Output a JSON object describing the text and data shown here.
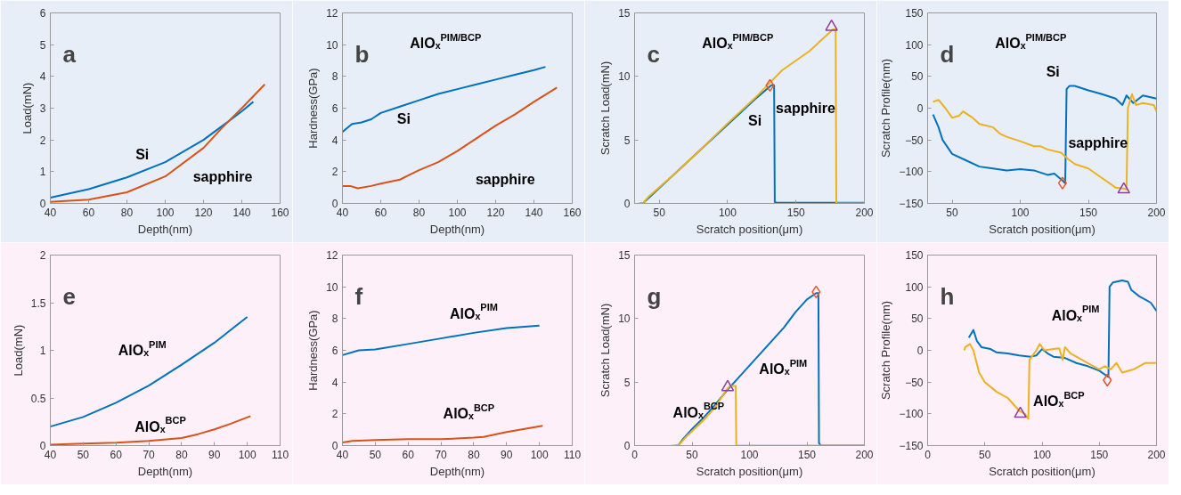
{
  "chart_data": [
    {
      "type": "line",
      "title": "a",
      "xlabel": "Depth(nm)",
      "ylabel": "Load(mN)",
      "xlim": [
        40,
        160
      ],
      "xticks": [
        40,
        60,
        80,
        100,
        120,
        140,
        160
      ],
      "ylim": [
        0,
        6
      ],
      "yticks": [
        0,
        1,
        2,
        3,
        4,
        5,
        6
      ],
      "series": [
        {
          "name": "Si",
          "color": "#0072bd",
          "x": [
            40,
            60,
            80,
            100,
            120,
            130,
            140,
            146
          ],
          "values": [
            0.18,
            0.45,
            0.82,
            1.3,
            2.0,
            2.45,
            2.9,
            3.2
          ]
        },
        {
          "name": "sapphire",
          "color": "#d95319",
          "x": [
            40,
            60,
            80,
            100,
            120,
            130,
            140,
            152
          ],
          "values": [
            0.05,
            0.12,
            0.35,
            0.85,
            1.75,
            2.4,
            3.0,
            3.75
          ]
        }
      ]
    },
    {
      "type": "line",
      "title": "b",
      "xlabel": "Depth(nm)",
      "ylabel": "Hardness(GPa)",
      "xlim": [
        40,
        160
      ],
      "xticks": [
        40,
        60,
        80,
        100,
        120,
        140,
        160
      ],
      "ylim": [
        0,
        12
      ],
      "yticks": [
        0,
        2,
        4,
        6,
        8,
        10,
        12
      ],
      "series": [
        {
          "name": "Si",
          "color": "#0072bd",
          "x": [
            40,
            45,
            50,
            55,
            60,
            70,
            80,
            90,
            100,
            110,
            120,
            130,
            140,
            146
          ],
          "values": [
            4.5,
            5.0,
            5.1,
            5.3,
            5.7,
            6.1,
            6.5,
            6.9,
            7.2,
            7.5,
            7.8,
            8.1,
            8.4,
            8.6
          ]
        },
        {
          "name": "sapphire",
          "color": "#d95319",
          "x": [
            40,
            44,
            48,
            55,
            60,
            70,
            75,
            80,
            90,
            100,
            110,
            120,
            130,
            140,
            152
          ],
          "values": [
            1.1,
            1.1,
            0.95,
            1.1,
            1.25,
            1.5,
            1.8,
            2.1,
            2.6,
            3.3,
            4.1,
            4.9,
            5.6,
            6.4,
            7.3
          ]
        }
      ],
      "annotations": [
        "AlOₓ$^{PIM/BCP}$"
      ]
    },
    {
      "type": "line",
      "title": "c",
      "xlabel": "Scratch position(μm)",
      "ylabel": "Scratch Load(mN)",
      "xlim": [
        32,
        200
      ],
      "xticks": [
        50,
        100,
        150,
        200
      ],
      "ylim": [
        0,
        15
      ],
      "yticks": [
        0,
        5,
        10,
        15
      ],
      "series": [
        {
          "name": "Si",
          "color": "#0072bd",
          "x": [
            36,
            38,
            42,
            60,
            80,
            100,
            120,
            132,
            134,
            134.5,
            136,
            200
          ],
          "values": [
            0,
            0,
            0.4,
            2.2,
            4.2,
            6.2,
            8.2,
            9.3,
            9.3,
            0.1,
            0.05,
            0.05
          ]
        },
        {
          "name": "sapphire",
          "color": "#edb120",
          "x": [
            35,
            38,
            42,
            60,
            80,
            100,
            120,
            140,
            160,
            177,
            179,
            179.5,
            200
          ],
          "values": [
            0,
            0,
            0.5,
            2.2,
            4.2,
            6.3,
            8.3,
            10.5,
            12.0,
            13.7,
            13.7,
            0,
            0
          ]
        },
        {
          "type": "scatter",
          "marker": "diamond",
          "color": "#e8552a",
          "x": [
            131
          ],
          "values": [
            9.3
          ]
        },
        {
          "type": "scatter",
          "marker": "triangle",
          "color": "#8e3c9e",
          "x": [
            176
          ],
          "values": [
            13.9
          ]
        }
      ],
      "annotations": [
        "AlOₓ$^{PIM/BCP}$"
      ]
    },
    {
      "type": "line",
      "title": "d",
      "xlabel": "Scratch position(μm)",
      "ylabel": "Scratch Profile(nm)",
      "xlim": [
        32,
        200
      ],
      "xticks": [
        50,
        100,
        150,
        200
      ],
      "ylim": [
        -150,
        150
      ],
      "yticks": [
        -150,
        -100,
        -50,
        0,
        50,
        100,
        150
      ],
      "series": [
        {
          "name": "Si",
          "color": "#0072bd",
          "x": [
            36,
            40,
            43,
            50,
            60,
            70,
            80,
            90,
            100,
            110,
            120,
            125,
            130,
            133,
            134,
            136,
            140,
            150,
            160,
            170,
            175,
            178,
            183,
            190,
            200
          ],
          "values": [
            -10,
            -30,
            -50,
            -72,
            -82,
            -92,
            -95,
            -98,
            -96,
            -98,
            -105,
            -103,
            -112,
            -118,
            30,
            35,
            35,
            28,
            22,
            15,
            5,
            20,
            8,
            20,
            15
          ]
        },
        {
          "name": "sapphire",
          "color": "#edb120",
          "x": [
            36,
            40,
            45,
            50,
            55,
            58,
            65,
            70,
            80,
            85,
            90,
            100,
            110,
            115,
            120,
            130,
            135,
            140,
            150,
            160,
            170,
            177,
            178,
            179,
            182,
            185,
            190,
            198,
            200
          ],
          "values": [
            10,
            13,
            0,
            -15,
            -12,
            -5,
            -15,
            -25,
            -30,
            -40,
            -45,
            -52,
            -60,
            -60,
            -65,
            -70,
            -80,
            -88,
            -95,
            -110,
            -125,
            -127,
            -128,
            0,
            22,
            5,
            8,
            5,
            -5
          ]
        },
        {
          "type": "scatter",
          "marker": "diamond",
          "color": "#e8552a",
          "x": [
            131
          ],
          "values": [
            -118
          ]
        },
        {
          "type": "scatter",
          "marker": "triangle",
          "color": "#8e3c9e",
          "x": [
            176
          ],
          "values": [
            -128
          ]
        }
      ],
      "annotations": [
        "AlOₓ$^{PIM/BCP}$"
      ]
    },
    {
      "type": "line",
      "title": "e",
      "xlabel": "Depth(nm)",
      "ylabel": "Load(mN)",
      "xlim": [
        40,
        110
      ],
      "xticks": [
        40,
        50,
        60,
        70,
        80,
        90,
        100,
        110
      ],
      "ylim": [
        0,
        2
      ],
      "yticks": [
        0,
        0.5,
        1,
        1.5,
        2
      ],
      "series": [
        {
          "name": "AlOₓ$^{PIM}$",
          "color": "#0072bd",
          "x": [
            40,
            50,
            60,
            70,
            80,
            90,
            100
          ],
          "values": [
            0.2,
            0.3,
            0.45,
            0.63,
            0.85,
            1.08,
            1.35
          ]
        },
        {
          "name": "AlOₓ$^{BCP}$",
          "color": "#d95319",
          "x": [
            40,
            50,
            60,
            70,
            80,
            85,
            90,
            95,
            101
          ],
          "values": [
            0.01,
            0.02,
            0.03,
            0.05,
            0.08,
            0.12,
            0.17,
            0.23,
            0.31
          ]
        }
      ]
    },
    {
      "type": "line",
      "title": "f",
      "xlabel": "Depth(nm)",
      "ylabel": "Hardness(GPa)",
      "xlim": [
        40,
        110
      ],
      "xticks": [
        40,
        50,
        60,
        70,
        80,
        90,
        100,
        110
      ],
      "ylim": [
        0,
        12
      ],
      "yticks": [
        0,
        2,
        4,
        6,
        8,
        10,
        12
      ],
      "series": [
        {
          "name": "AlOₓ$^{PIM}$",
          "color": "#0072bd",
          "x": [
            40,
            45,
            50,
            60,
            70,
            80,
            90,
            100
          ],
          "values": [
            5.7,
            6.0,
            6.05,
            6.4,
            6.75,
            7.1,
            7.4,
            7.55
          ]
        },
        {
          "name": "AlOₓ$^{BCP}$",
          "color": "#d95319",
          "x": [
            40,
            43,
            50,
            60,
            70,
            80,
            83,
            90,
            101
          ],
          "values": [
            0.2,
            0.3,
            0.35,
            0.4,
            0.4,
            0.5,
            0.55,
            0.85,
            1.25
          ]
        }
      ]
    },
    {
      "type": "line",
      "title": "g",
      "xlabel": "Scratch position(μm)",
      "ylabel": "Scratch Load(mN)",
      "xlim": [
        0,
        200
      ],
      "xticks": [
        0,
        50,
        100,
        150,
        200
      ],
      "ylim": [
        0,
        15
      ],
      "yticks": [
        0,
        5,
        10,
        15
      ],
      "series": [
        {
          "name": "AlOₓ$^{PIM}$",
          "color": "#0072bd",
          "x": [
            35,
            38,
            42,
            50,
            60,
            70,
            80,
            90,
            100,
            110,
            120,
            130,
            140,
            150,
            158,
            160,
            160.5,
            162,
            200
          ],
          "values": [
            0,
            0,
            0.5,
            1.3,
            2.2,
            3.2,
            4.3,
            5.3,
            6.3,
            7.3,
            8.3,
            9.3,
            10.5,
            11.5,
            12.0,
            12.0,
            0.2,
            0,
            0
          ]
        },
        {
          "name": "AlOₓ$^{BCP}$",
          "color": "#edb120",
          "x": [
            32,
            38,
            45,
            60,
            70,
            80,
            83,
            88,
            88.5,
            200
          ],
          "values": [
            0,
            0,
            0.7,
            2.0,
            3.0,
            4.4,
            4.7,
            4.7,
            0,
            0
          ]
        },
        {
          "type": "scatter",
          "marker": "triangle",
          "color": "#8e3c9e",
          "x": [
            81
          ],
          "values": [
            4.6
          ]
        },
        {
          "type": "scatter",
          "marker": "diamond",
          "color": "#e8552a",
          "x": [
            158
          ],
          "values": [
            12.1
          ]
        }
      ]
    },
    {
      "type": "line",
      "title": "h",
      "xlabel": "Scratch position(μm)",
      "ylabel": "Scratch Profile(nm)",
      "xlim": [
        0,
        200
      ],
      "xticks": [
        0,
        50,
        100,
        150,
        200
      ],
      "ylim": [
        -150,
        150
      ],
      "yticks": [
        -150,
        -100,
        -50,
        0,
        50,
        100,
        150
      ],
      "series": [
        {
          "name": "AlOₓ$^{PIM}$",
          "color": "#0072bd",
          "x": [
            36,
            40,
            43,
            47,
            55,
            60,
            70,
            80,
            90,
            95,
            100,
            105,
            110,
            120,
            130,
            140,
            150,
            158,
            159,
            162,
            170,
            175,
            178,
            185,
            190,
            195,
            200
          ],
          "values": [
            20,
            32,
            15,
            5,
            2,
            -3,
            -5,
            -8,
            -10,
            -8,
            2,
            -5,
            -10,
            -12,
            -20,
            -25,
            -32,
            -42,
            100,
            107,
            110,
            108,
            95,
            85,
            80,
            75,
            62
          ]
        },
        {
          "name": "AlOₓ$^{BCP}$",
          "color": "#edb120",
          "x": [
            32,
            33,
            37,
            40,
            45,
            50,
            60,
            70,
            80,
            85,
            88,
            89,
            95,
            98,
            102,
            110,
            115,
            118,
            120,
            125,
            130,
            140,
            150,
            155,
            160,
            165,
            170,
            180,
            190,
            200
          ],
          "values": [
            0,
            5,
            10,
            0,
            -35,
            -50,
            -65,
            -75,
            -95,
            -100,
            -108,
            -15,
            0,
            10,
            0,
            2,
            3,
            -15,
            5,
            -5,
            -10,
            -20,
            -30,
            -25,
            -30,
            -20,
            -35,
            -30,
            -20,
            -20
          ]
        },
        {
          "type": "scatter",
          "marker": "triangle",
          "color": "#8e3c9e",
          "x": [
            81
          ],
          "values": [
            -100
          ]
        },
        {
          "type": "scatter",
          "marker": "diamond",
          "color": "#e8552a",
          "x": [
            157
          ],
          "values": [
            -47
          ]
        }
      ]
    }
  ]
}
